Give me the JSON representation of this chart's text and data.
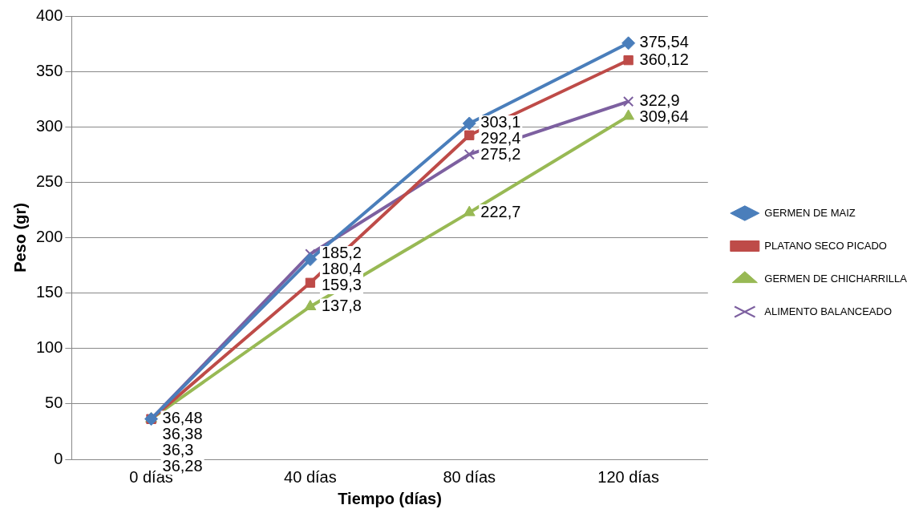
{
  "chart_data": {
    "type": "line",
    "xlabel": "Tiempo (días)",
    "ylabel": "Peso (gr)",
    "categories": [
      "0 días",
      "40 días",
      "80 días",
      "120 días"
    ],
    "series": [
      {
        "name": "GERMEN DE MAIZ",
        "color": "#4a7ebb",
        "marker": "diamond",
        "values": [
          36.38,
          180.4,
          303.1,
          375.54
        ],
        "value_labels": [
          "36,38",
          "180,4",
          "303,1",
          "375,54"
        ]
      },
      {
        "name": "PLATANO SECO PICADO",
        "color": "#be4b48",
        "marker": "square",
        "values": [
          36.28,
          159.3,
          292.4,
          360.12
        ],
        "value_labels": [
          "36,28",
          "159,3",
          "292,4",
          "360,12"
        ]
      },
      {
        "name": "GERMEN DE CHICHARRILLA",
        "color": "#98b954",
        "marker": "triangle",
        "values": [
          36.48,
          137.8,
          222.7,
          309.64
        ],
        "value_labels": [
          "36,48",
          "137,8",
          "222,7",
          "309,64"
        ]
      },
      {
        "name": "ALIMENTO BALANCEADO",
        "color": "#7d60a0",
        "marker": "cross",
        "values": [
          36.3,
          185.2,
          275.2,
          322.9
        ],
        "value_labels": [
          "36,3",
          "185,2",
          "275,2",
          "322,9"
        ]
      }
    ],
    "ylim": [
      0,
      400
    ],
    "yticks": [
      0,
      50,
      100,
      150,
      200,
      250,
      300,
      350,
      400
    ],
    "grid": "y",
    "legend": "right"
  }
}
